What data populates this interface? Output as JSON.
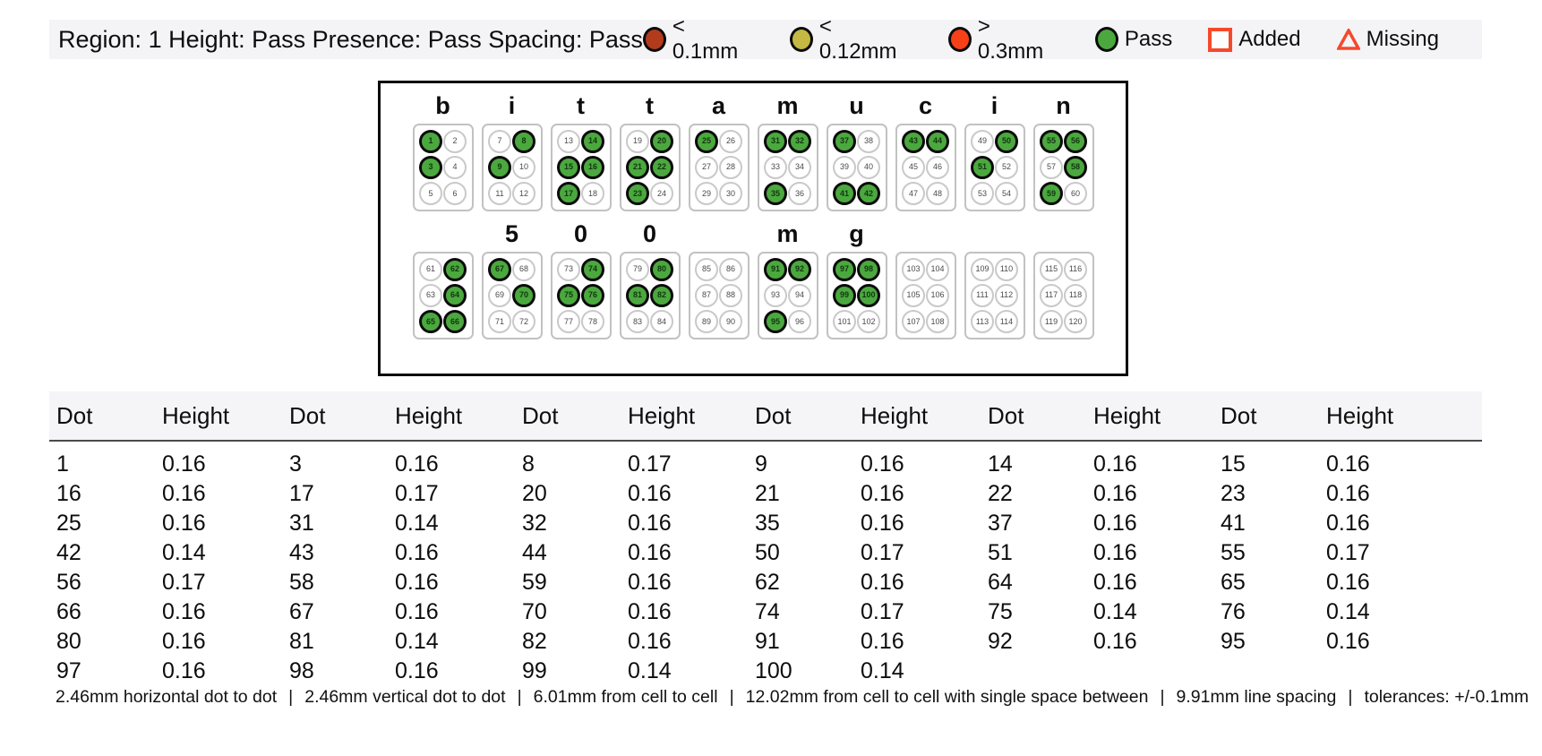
{
  "header": {
    "status_text": "Region: 1 Height: Pass Presence: Pass Spacing: Pass",
    "legend": [
      {
        "shape": "circle",
        "icon": "dark-red-circle-icon",
        "color": "#b23b1c",
        "label": "< 0.1mm"
      },
      {
        "shape": "circle",
        "icon": "yellow-circle-icon",
        "color": "#c3b943",
        "label": "< 0.12mm"
      },
      {
        "shape": "circle",
        "icon": "red-circle-icon",
        "color": "#f54018",
        "label": "> 0.3mm"
      },
      {
        "shape": "circle",
        "icon": "green-circle-icon",
        "color": "#4ba83e",
        "label": "Pass"
      },
      {
        "shape": "square",
        "icon": "added-square-icon",
        "color": "#f5492b",
        "label": "Added"
      },
      {
        "shape": "triangle",
        "icon": "missing-triangle-icon",
        "color": "#f5492b",
        "label": "Missing"
      }
    ]
  },
  "braille": {
    "pass_color": "#4ba83e",
    "rows": [
      {
        "cells": [
          {
            "label": "b",
            "start": 1,
            "filled": [
              1,
              3
            ]
          },
          {
            "label": "i",
            "start": 7,
            "filled": [
              8,
              9
            ]
          },
          {
            "label": "t",
            "start": 13,
            "filled": [
              14,
              15,
              16,
              17
            ]
          },
          {
            "label": "t",
            "start": 19,
            "filled": [
              20,
              21,
              22,
              23
            ]
          },
          {
            "label": "a",
            "start": 25,
            "filled": [
              25
            ]
          },
          {
            "label": "m",
            "start": 31,
            "filled": [
              31,
              32,
              35
            ]
          },
          {
            "label": "u",
            "start": 37,
            "filled": [
              37,
              41,
              42
            ]
          },
          {
            "label": "c",
            "start": 43,
            "filled": [
              43,
              44
            ]
          },
          {
            "label": "i",
            "start": 49,
            "filled": [
              50,
              51
            ]
          },
          {
            "label": "n",
            "start": 55,
            "filled": [
              55,
              56,
              58,
              59
            ]
          }
        ]
      },
      {
        "cells": [
          {
            "label": "",
            "start": 61,
            "filled": [
              62,
              64,
              65,
              66
            ]
          },
          {
            "label": "5",
            "start": 67,
            "filled": [
              67,
              70
            ]
          },
          {
            "label": "0",
            "start": 73,
            "filled": [
              74,
              75,
              76
            ]
          },
          {
            "label": "0",
            "start": 79,
            "filled": [
              80,
              81,
              82
            ]
          },
          {
            "label": "",
            "start": 85,
            "filled": []
          },
          {
            "label": "m",
            "start": 91,
            "filled": [
              91,
              92,
              95
            ]
          },
          {
            "label": "g",
            "start": 97,
            "filled": [
              97,
              98,
              99,
              100
            ]
          },
          {
            "label": "",
            "start": 103,
            "filled": []
          },
          {
            "label": "",
            "start": 109,
            "filled": []
          },
          {
            "label": "",
            "start": 115,
            "filled": []
          }
        ]
      }
    ]
  },
  "table": {
    "col_headers": [
      "Dot",
      "Height"
    ],
    "pairs_per_row": 6,
    "rows": [
      [
        [
          "1",
          "0.16"
        ],
        [
          "3",
          "0.16"
        ],
        [
          "8",
          "0.17"
        ],
        [
          "9",
          "0.16"
        ],
        [
          "14",
          "0.16"
        ],
        [
          "15",
          "0.16"
        ]
      ],
      [
        [
          "16",
          "0.16"
        ],
        [
          "17",
          "0.17"
        ],
        [
          "20",
          "0.16"
        ],
        [
          "21",
          "0.16"
        ],
        [
          "22",
          "0.16"
        ],
        [
          "23",
          "0.16"
        ]
      ],
      [
        [
          "25",
          "0.16"
        ],
        [
          "31",
          "0.14"
        ],
        [
          "32",
          "0.16"
        ],
        [
          "35",
          "0.16"
        ],
        [
          "37",
          "0.16"
        ],
        [
          "41",
          "0.16"
        ]
      ],
      [
        [
          "42",
          "0.14"
        ],
        [
          "43",
          "0.16"
        ],
        [
          "44",
          "0.16"
        ],
        [
          "50",
          "0.17"
        ],
        [
          "51",
          "0.16"
        ],
        [
          "55",
          "0.17"
        ]
      ],
      [
        [
          "56",
          "0.17"
        ],
        [
          "58",
          "0.16"
        ],
        [
          "59",
          "0.16"
        ],
        [
          "62",
          "0.16"
        ],
        [
          "64",
          "0.16"
        ],
        [
          "65",
          "0.16"
        ]
      ],
      [
        [
          "66",
          "0.16"
        ],
        [
          "67",
          "0.16"
        ],
        [
          "70",
          "0.16"
        ],
        [
          "74",
          "0.17"
        ],
        [
          "75",
          "0.14"
        ],
        [
          "76",
          "0.14"
        ]
      ],
      [
        [
          "80",
          "0.16"
        ],
        [
          "81",
          "0.14"
        ],
        [
          "82",
          "0.16"
        ],
        [
          "91",
          "0.16"
        ],
        [
          "92",
          "0.16"
        ],
        [
          "95",
          "0.16"
        ]
      ],
      [
        [
          "97",
          "0.16"
        ],
        [
          "98",
          "0.16"
        ],
        [
          "99",
          "0.14"
        ],
        [
          "100",
          "0.14"
        ]
      ]
    ]
  },
  "footer": {
    "segments": [
      "2.46mm horizontal dot to dot",
      "2.46mm vertical dot to dot",
      "6.01mm from cell to cell",
      "12.02mm from cell to cell with single space between",
      "9.91mm line spacing",
      "tolerances: +/-0.1mm"
    ]
  }
}
